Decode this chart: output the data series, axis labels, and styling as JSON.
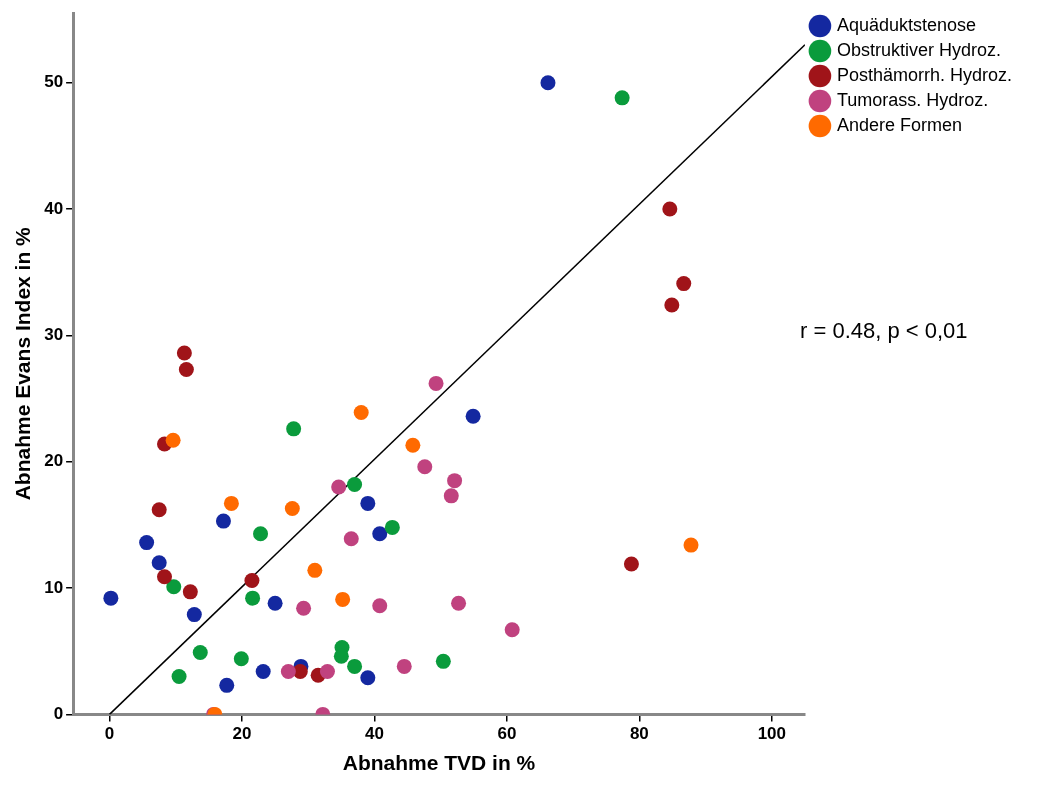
{
  "chart_data": {
    "type": "scatter",
    "xlabel": "Abnahme TVD in %",
    "ylabel": "Abnahme Evans Index in %",
    "xlim": [
      -5.5,
      105
    ],
    "xticks": [
      0,
      20,
      40,
      60,
      80,
      100
    ],
    "ylim": [
      0,
      55.5
    ],
    "yticks": [
      0,
      10,
      20,
      30,
      40,
      50
    ],
    "grid": false,
    "legend": "right",
    "marker": "circle",
    "annotations": [
      "r = 0.48, p < 0,01"
    ],
    "series": [
      {
        "name": "Aquäduktstenose",
        "color": "#1428a0",
        "x": [
          0.2,
          5.6,
          7.5,
          12.8,
          17.2,
          17.7,
          23.2,
          25.0,
          28.9,
          39.0,
          39.0,
          40.8,
          54.9,
          66.2
        ],
        "values": [
          9.2,
          13.6,
          12.0,
          7.9,
          15.3,
          2.3,
          3.4,
          8.8,
          3.8,
          2.9,
          16.7,
          14.3,
          23.6,
          50.0
        ]
      },
      {
        "name": "Obstruktiver Hydroz.",
        "color": "#0a9b3c",
        "x": [
          9.7,
          10.5,
          13.7,
          19.9,
          21.6,
          22.8,
          27.8,
          35.1,
          35.0,
          37.0,
          37.0,
          42.7,
          50.4,
          77.4
        ],
        "values": [
          10.1,
          3.0,
          4.9,
          4.4,
          9.2,
          14.3,
          22.6,
          5.3,
          4.6,
          18.2,
          3.8,
          14.8,
          4.2,
          48.8
        ]
      },
      {
        "name": "Posthämorrh. Hydroz.",
        "color": "#a01419",
        "x": [
          7.5,
          8.3,
          8.3,
          11.3,
          11.6,
          12.2,
          21.5,
          28.8,
          31.5,
          78.8,
          84.6,
          84.9,
          86.7
        ],
        "values": [
          16.2,
          21.4,
          10.9,
          28.6,
          27.3,
          9.7,
          10.6,
          3.4,
          3.1,
          11.9,
          40.0,
          32.4,
          34.1
        ]
      },
      {
        "name": "Tumorass. Hydroz.",
        "color": "#c0427f",
        "x": [
          15.7,
          27.0,
          29.3,
          32.2,
          32.9,
          34.6,
          36.5,
          40.8,
          44.5,
          47.6,
          49.3,
          51.6,
          52.1,
          52.7,
          60.8
        ],
        "values": [
          0,
          3.4,
          8.4,
          0,
          3.4,
          18.0,
          13.9,
          8.6,
          3.8,
          19.6,
          26.2,
          17.3,
          18.5,
          8.8,
          6.7
        ]
      },
      {
        "name": "Andere Formen",
        "color": "#ff6a00",
        "x": [
          9.6,
          15.9,
          18.4,
          27.6,
          31.0,
          35.2,
          38.0,
          45.8,
          87.8
        ],
        "values": [
          21.7,
          0,
          16.7,
          16.3,
          11.4,
          9.1,
          23.9,
          21.3,
          13.4
        ]
      },
      {
        "type": "line",
        "color": "#000000",
        "marker": "none",
        "x": [
          0,
          105
        ],
        "values": [
          0,
          53
        ]
      }
    ]
  }
}
